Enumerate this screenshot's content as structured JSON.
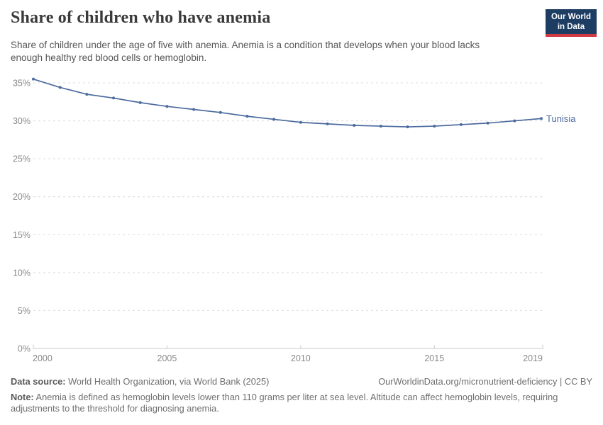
{
  "header": {
    "title": "Share of children who have anemia",
    "subtitle_lines": [
      "Share of children under the age of five with anemia. Anemia is a condition that develops when your blood lacks",
      "enough healthy red blood cells or hemoglobin."
    ],
    "logo": {
      "line1": "Our World",
      "line2": "in Data",
      "bg_color": "#1d3d63",
      "accent_color": "#d03a43"
    }
  },
  "chart_data": {
    "type": "line",
    "title": "Share of children who have anemia",
    "xlabel": "",
    "ylabel": "",
    "grid": "horizontal-dashed",
    "legend_position": "end-of-line-label",
    "xlim": [
      2000,
      2019
    ],
    "ylim": [
      0,
      35
    ],
    "x_ticks": [
      2000,
      2005,
      2010,
      2015,
      2019
    ],
    "x_tick_labels": [
      "2000",
      "2005",
      "2010",
      "2015",
      "2019"
    ],
    "y_ticks": [
      0,
      5,
      10,
      15,
      20,
      25,
      30,
      35
    ],
    "y_tick_labels": [
      "0%",
      "5%",
      "10%",
      "15%",
      "20%",
      "25%",
      "30%",
      "35%"
    ],
    "x": [
      2000,
      2001,
      2002,
      2003,
      2004,
      2005,
      2006,
      2007,
      2008,
      2009,
      2010,
      2011,
      2012,
      2013,
      2014,
      2015,
      2016,
      2017,
      2018,
      2019
    ],
    "series": [
      {
        "name": "Tunisia",
        "color": "#4c6a9e",
        "values": [
          35.5,
          34.4,
          33.5,
          33.0,
          32.4,
          31.9,
          31.5,
          31.1,
          30.6,
          30.2,
          29.8,
          29.6,
          29.4,
          29.3,
          29.2,
          29.3,
          29.5,
          29.7,
          30.0,
          30.3
        ]
      }
    ],
    "colors": {
      "gridline": "#dcdcdc",
      "axis": "#c8c8c8",
      "tick_label": "#8a8a8a"
    }
  },
  "footer": {
    "datasource_label": "Data source:",
    "datasource_value": " World Health Organization, via World Bank (2025)",
    "attribution": "OurWorldinData.org/micronutrient-deficiency | CC BY",
    "note_label": "Note:",
    "note_value": " Anemia is defined as hemoglobin levels lower than 110 grams per liter at sea level. Altitude can affect hemoglobin levels, requiring adjustments to the threshold for diagnosing anemia."
  }
}
